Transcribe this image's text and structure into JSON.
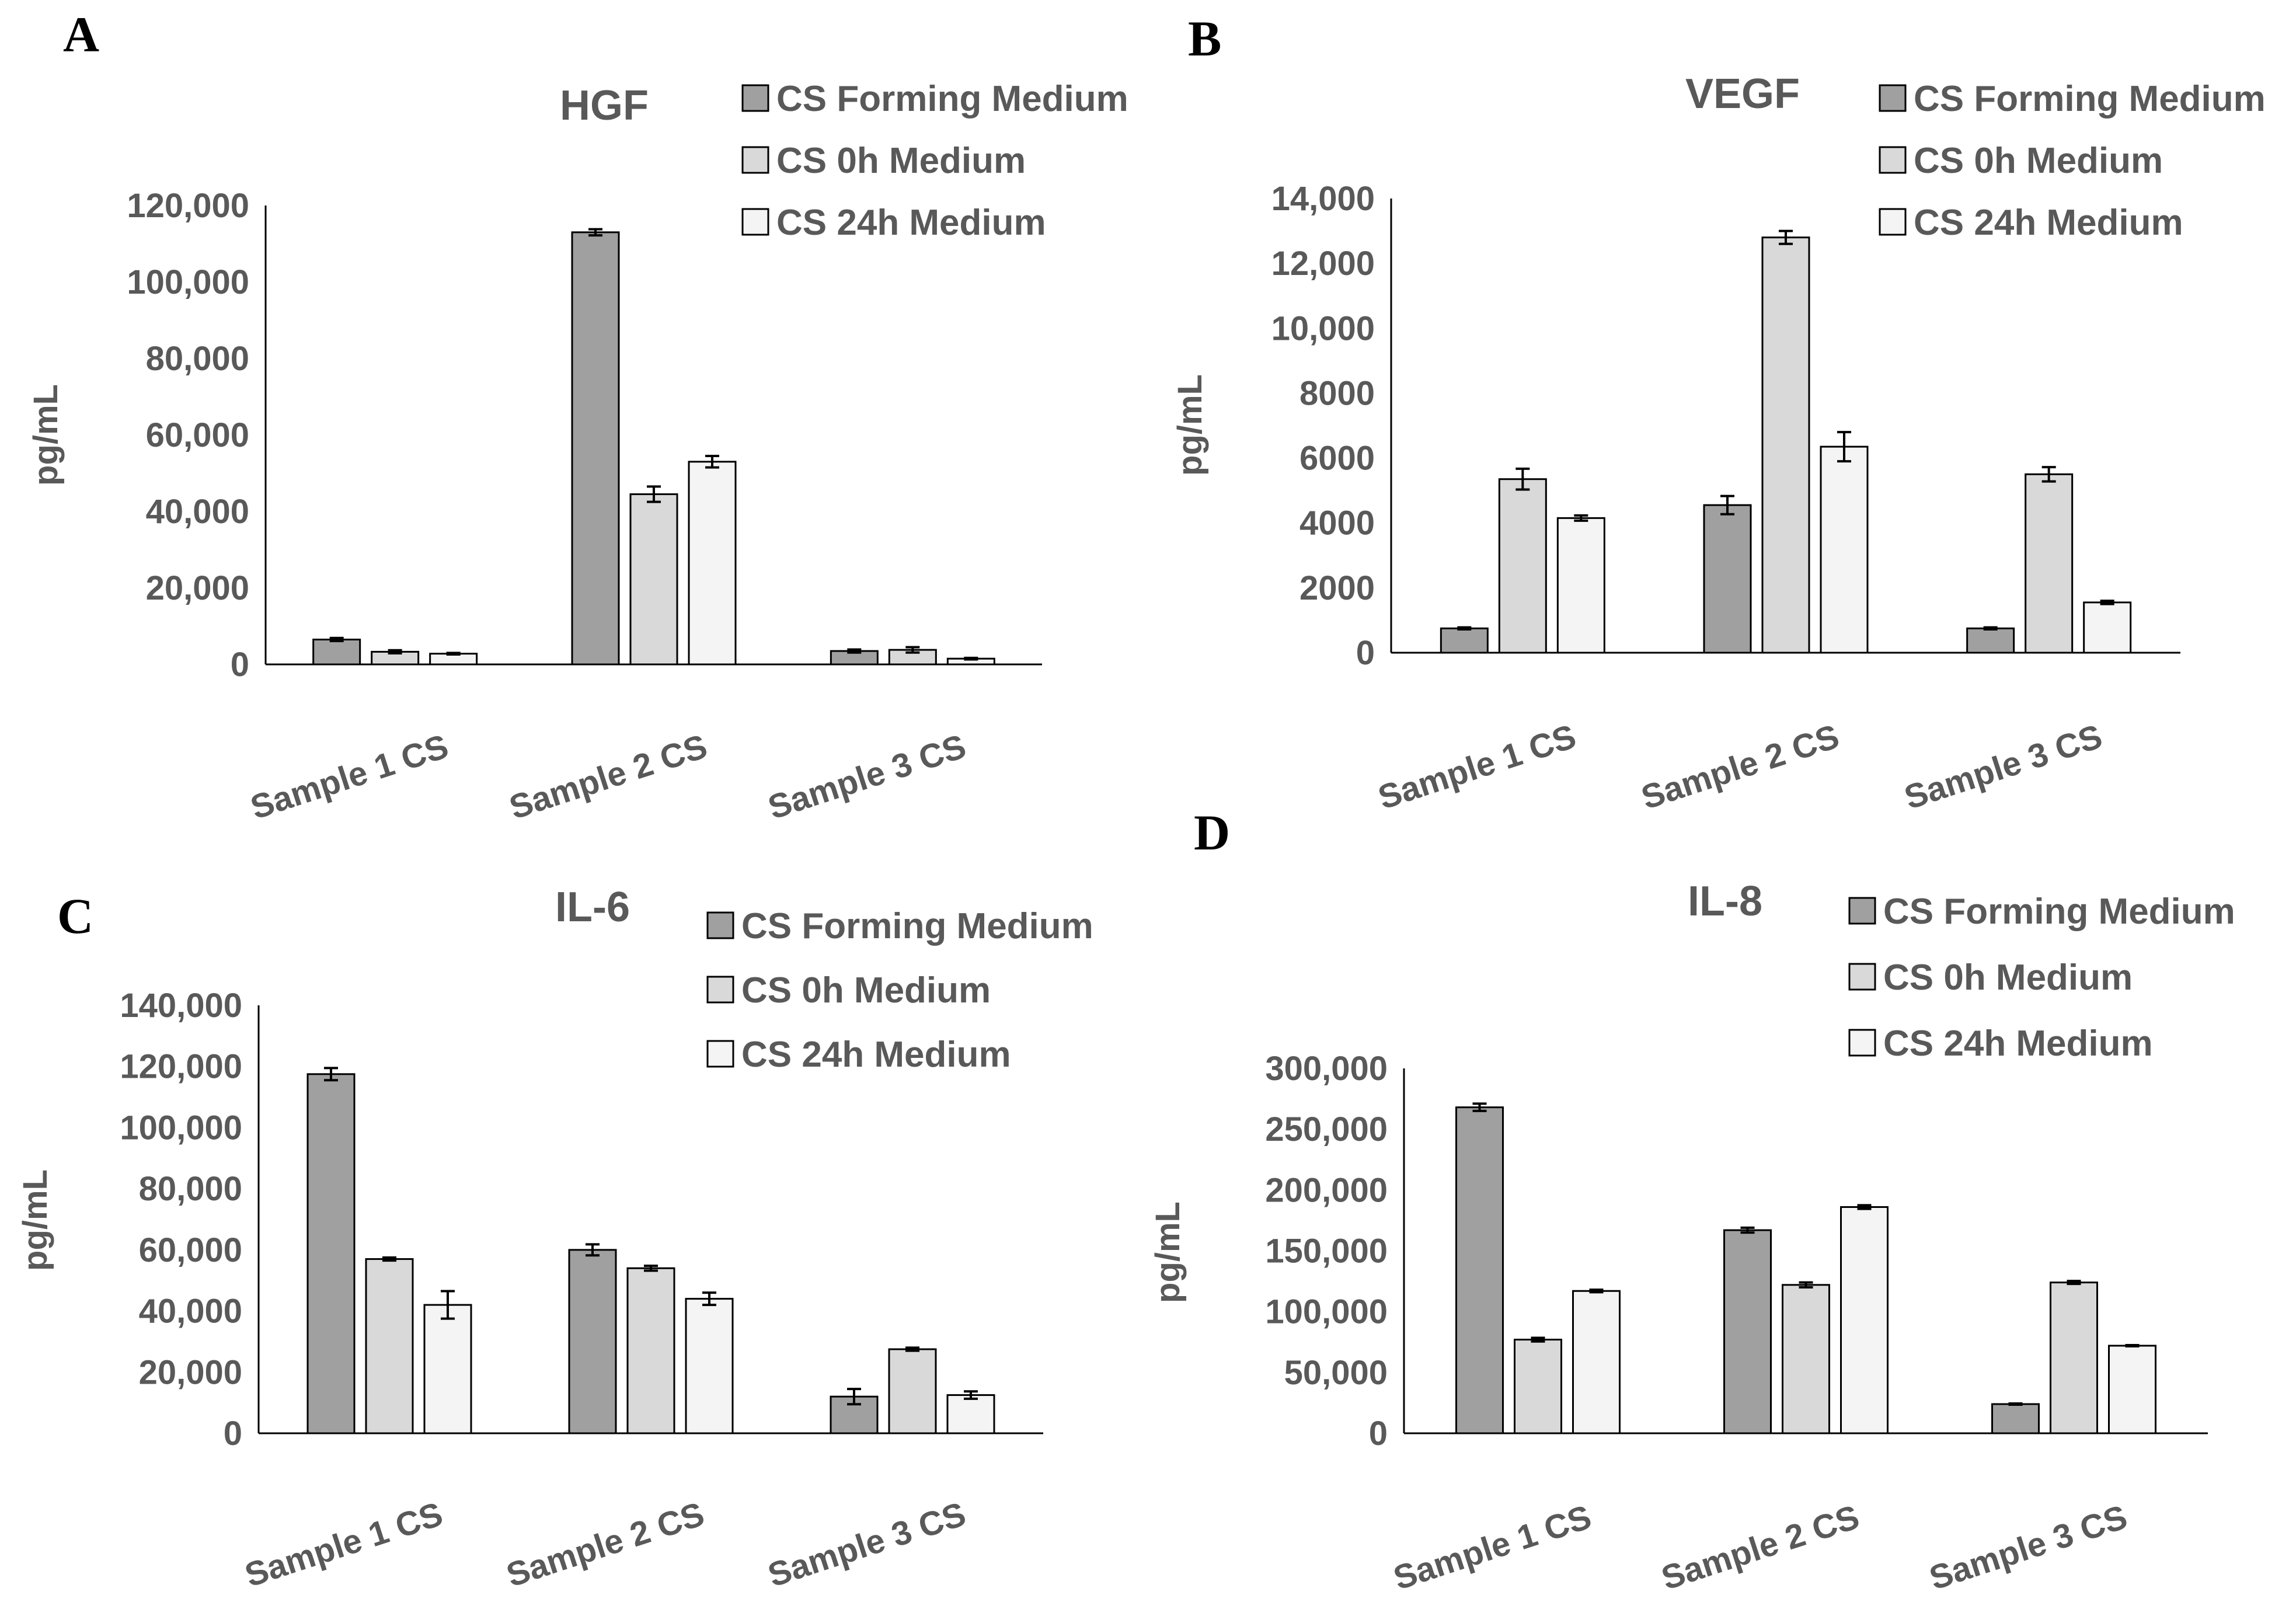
{
  "colors": {
    "CS Forming Medium": "#a0a0a0",
    "CS 0h Medium": "#d9d9d9",
    "CS 24h Medium": "#f4f4f4",
    "axis": "#000000",
    "text": "#595959"
  },
  "chart_data": [
    {
      "panel": "A",
      "type": "bar",
      "title": "HGF",
      "ylabel": "pg/mL",
      "xlabel": "",
      "categories": [
        "Sample 1 CS",
        "Sample 2 CS",
        "Sample 3 CS"
      ],
      "ylim": [
        0,
        120000
      ],
      "yticks": [
        0,
        20000,
        40000,
        60000,
        80000,
        100000,
        120000
      ],
      "ytick_labels": [
        "0",
        "20,000",
        "40,000",
        "60,000",
        "80,000",
        "100,000",
        "120,000"
      ],
      "legend": [
        "CS Forming Medium",
        "CS 0h Medium",
        "CS 24h Medium"
      ],
      "legend_position": "top-right",
      "series": [
        {
          "name": "CS Forming Medium",
          "values": [
            6500,
            113000,
            3500
          ],
          "errors": [
            400,
            800,
            400
          ]
        },
        {
          "name": "CS 0h Medium",
          "values": [
            3300,
            44500,
            3800
          ],
          "errors": [
            400,
            2000,
            700
          ]
        },
        {
          "name": "CS 24h Medium",
          "values": [
            2800,
            53000,
            1500
          ],
          "errors": [
            200,
            1500,
            200
          ]
        }
      ]
    },
    {
      "panel": "B",
      "type": "bar",
      "title": "VEGF",
      "ylabel": "pg/mL",
      "xlabel": "",
      "categories": [
        "Sample 1 CS",
        "Sample 2 CS",
        "Sample 3 CS"
      ],
      "ylim": [
        0,
        14000
      ],
      "yticks": [
        0,
        2000,
        4000,
        6000,
        8000,
        10000,
        12000,
        14000
      ],
      "ytick_labels": [
        "0",
        "2000",
        "4000",
        "6000",
        "8000",
        "10,000",
        "12,000",
        "14,000"
      ],
      "legend": [
        "CS Forming Medium",
        "CS 0h Medium",
        "CS 24h Medium"
      ],
      "legend_position": "top-right",
      "series": [
        {
          "name": "CS Forming Medium",
          "values": [
            750,
            4550,
            750
          ],
          "errors": [
            30,
            280,
            30
          ]
        },
        {
          "name": "CS 0h Medium",
          "values": [
            5350,
            12800,
            5500
          ],
          "errors": [
            320,
            200,
            220
          ]
        },
        {
          "name": "CS 24h Medium",
          "values": [
            4150,
            6350,
            1550
          ],
          "errors": [
            80,
            450,
            50
          ]
        }
      ]
    },
    {
      "panel": "C",
      "type": "bar",
      "title": "IL-6",
      "ylabel": "pg/mL",
      "xlabel": "",
      "categories": [
        "Sample 1 CS",
        "Sample 2 CS",
        "Sample 3 CS"
      ],
      "ylim": [
        0,
        140000
      ],
      "yticks": [
        0,
        20000,
        40000,
        60000,
        80000,
        100000,
        120000,
        140000
      ],
      "ytick_labels": [
        "0",
        "20,000",
        "40,000",
        "60,000",
        "80,000",
        "100,000",
        "120,000",
        "140,000"
      ],
      "legend": [
        "CS Forming Medium",
        "CS 0h Medium",
        "CS 24h Medium"
      ],
      "legend_position": "top-right",
      "series": [
        {
          "name": "CS Forming Medium",
          "values": [
            117500,
            60000,
            12000
          ],
          "errors": [
            2000,
            1800,
            2500
          ]
        },
        {
          "name": "CS 0h Medium",
          "values": [
            57000,
            54000,
            27500
          ],
          "errors": [
            500,
            800,
            500
          ]
        },
        {
          "name": "CS 24h Medium",
          "values": [
            42000,
            44000,
            12500
          ],
          "errors": [
            4500,
            2000,
            1200
          ]
        }
      ]
    },
    {
      "panel": "D",
      "type": "bar",
      "title": "IL-8",
      "ylabel": "pg/mL",
      "xlabel": "",
      "categories": [
        "Sample 1 CS",
        "Sample 2 CS",
        "Sample 3 CS"
      ],
      "ylim": [
        0,
        300000
      ],
      "yticks": [
        0,
        50000,
        100000,
        150000,
        200000,
        250000,
        300000
      ],
      "ytick_labels": [
        "0",
        "50,000",
        "100,000",
        "150,000",
        "200,000",
        "250,000",
        "300,000"
      ],
      "legend": [
        "CS Forming Medium",
        "CS 0h Medium",
        "CS 24h Medium"
      ],
      "legend_position": "top-right",
      "series": [
        {
          "name": "CS Forming Medium",
          "values": [
            268000,
            167000,
            24000
          ],
          "errors": [
            3000,
            2000,
            500
          ]
        },
        {
          "name": "CS 0h Medium",
          "values": [
            77000,
            122000,
            124000
          ],
          "errors": [
            1500,
            2000,
            1200
          ]
        },
        {
          "name": "CS 24h Medium",
          "values": [
            117000,
            186000,
            72000
          ],
          "errors": [
            1000,
            1500,
            500
          ]
        }
      ]
    }
  ]
}
